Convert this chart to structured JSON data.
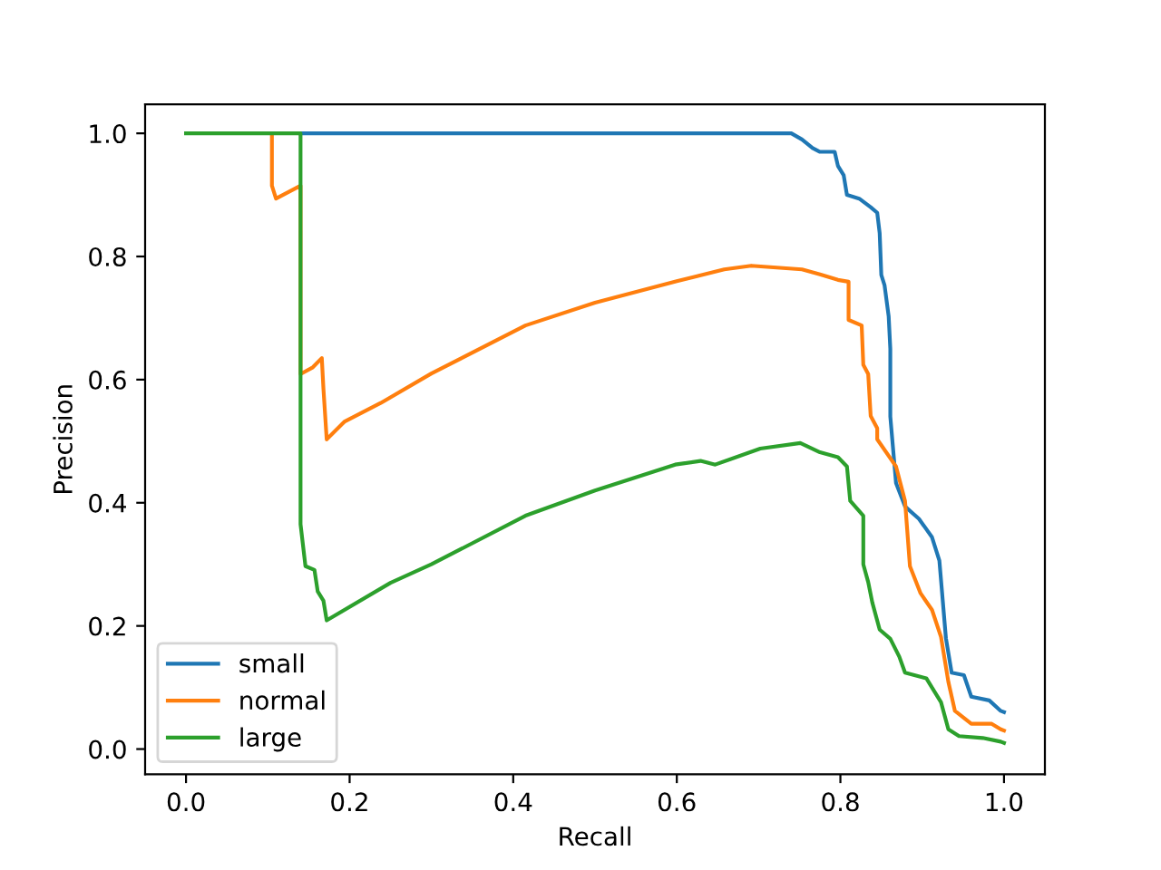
{
  "chart_data": {
    "type": "line",
    "xlabel": "Recall",
    "ylabel": "Precision",
    "xlim": [
      -0.05,
      1.05
    ],
    "ylim": [
      -0.041,
      1.047
    ],
    "xticks": [
      {
        "value": 0,
        "label": "0.0"
      },
      {
        "value": 0.2,
        "label": "0.2"
      },
      {
        "value": 0.4,
        "label": "0.4"
      },
      {
        "value": 0.6,
        "label": "0.6"
      },
      {
        "value": 0.8,
        "label": "0.8"
      },
      {
        "value": 1,
        "label": "1.0"
      }
    ],
    "yticks": [
      {
        "value": 0,
        "label": "0.0"
      },
      {
        "value": 0.2,
        "label": "0.2"
      },
      {
        "value": 0.4,
        "label": "0.4"
      },
      {
        "value": 0.6,
        "label": "0.6"
      },
      {
        "value": 0.8,
        "label": "0.8"
      },
      {
        "value": 1,
        "label": "1.0"
      }
    ],
    "grid": false,
    "legend": "bottom left",
    "series": [
      {
        "name": "small",
        "color": "#1f77b4",
        "x": [
          0.14,
          0.74,
          0.753,
          0.766,
          0.775,
          0.793,
          0.797,
          0.804,
          0.808,
          0.823,
          0.837,
          0.845,
          0.848,
          0.85,
          0.854,
          0.859,
          0.861,
          0.861,
          0.868,
          0.879,
          0.896,
          0.912,
          0.921,
          0.929,
          0.936,
          0.951,
          0.96,
          0.982,
          0.996,
          1.0
        ],
        "values": [
          1.0,
          1.0,
          0.99,
          0.976,
          0.97,
          0.97,
          0.947,
          0.932,
          0.9,
          0.894,
          0.88,
          0.871,
          0.838,
          0.77,
          0.753,
          0.703,
          0.65,
          0.54,
          0.432,
          0.394,
          0.374,
          0.344,
          0.306,
          0.18,
          0.124,
          0.12,
          0.085,
          0.079,
          0.062,
          0.06
        ]
      },
      {
        "name": "normal",
        "color": "#ff7f0e",
        "x": [
          0.105,
          0.105,
          0.11,
          0.14,
          0.14,
          0.155,
          0.166,
          0.168,
          0.172,
          0.194,
          0.216,
          0.238,
          0.3,
          0.415,
          0.5,
          0.6,
          0.658,
          0.691,
          0.753,
          0.775,
          0.797,
          0.81,
          0.81,
          0.826,
          0.828,
          0.834,
          0.837,
          0.845,
          0.845,
          0.868,
          0.879,
          0.885,
          0.898,
          0.912,
          0.923,
          0.932,
          0.94,
          0.96,
          0.985,
          0.996,
          1.0
        ],
        "values": [
          1.0,
          0.915,
          0.894,
          0.915,
          0.609,
          0.62,
          0.635,
          0.585,
          0.503,
          0.532,
          0.547,
          0.562,
          0.61,
          0.688,
          0.725,
          0.76,
          0.779,
          0.785,
          0.779,
          0.771,
          0.762,
          0.759,
          0.697,
          0.688,
          0.624,
          0.609,
          0.541,
          0.521,
          0.503,
          0.459,
          0.403,
          0.297,
          0.253,
          0.226,
          0.182,
          0.109,
          0.062,
          0.041,
          0.041,
          0.032,
          0.03
        ]
      },
      {
        "name": "large",
        "color": "#2ca02c",
        "x": [
          0,
          0.14,
          0.14,
          0.146,
          0.157,
          0.161,
          0.168,
          0.172,
          0.25,
          0.3,
          0.415,
          0.5,
          0.598,
          0.629,
          0.647,
          0.702,
          0.751,
          0.775,
          0.797,
          0.808,
          0.812,
          0.828,
          0.828,
          0.834,
          0.839,
          0.848,
          0.861,
          0.872,
          0.879,
          0.905,
          0.923,
          0.932,
          0.945,
          0.974,
          0.996,
          1.0
        ],
        "values": [
          1.0,
          1.0,
          0.365,
          0.297,
          0.291,
          0.256,
          0.241,
          0.209,
          0.27,
          0.3,
          0.379,
          0.42,
          0.462,
          0.468,
          0.462,
          0.488,
          0.497,
          0.482,
          0.474,
          0.459,
          0.403,
          0.379,
          0.3,
          0.271,
          0.238,
          0.194,
          0.179,
          0.15,
          0.124,
          0.115,
          0.076,
          0.032,
          0.021,
          0.018,
          0.012,
          0.01
        ]
      }
    ]
  }
}
